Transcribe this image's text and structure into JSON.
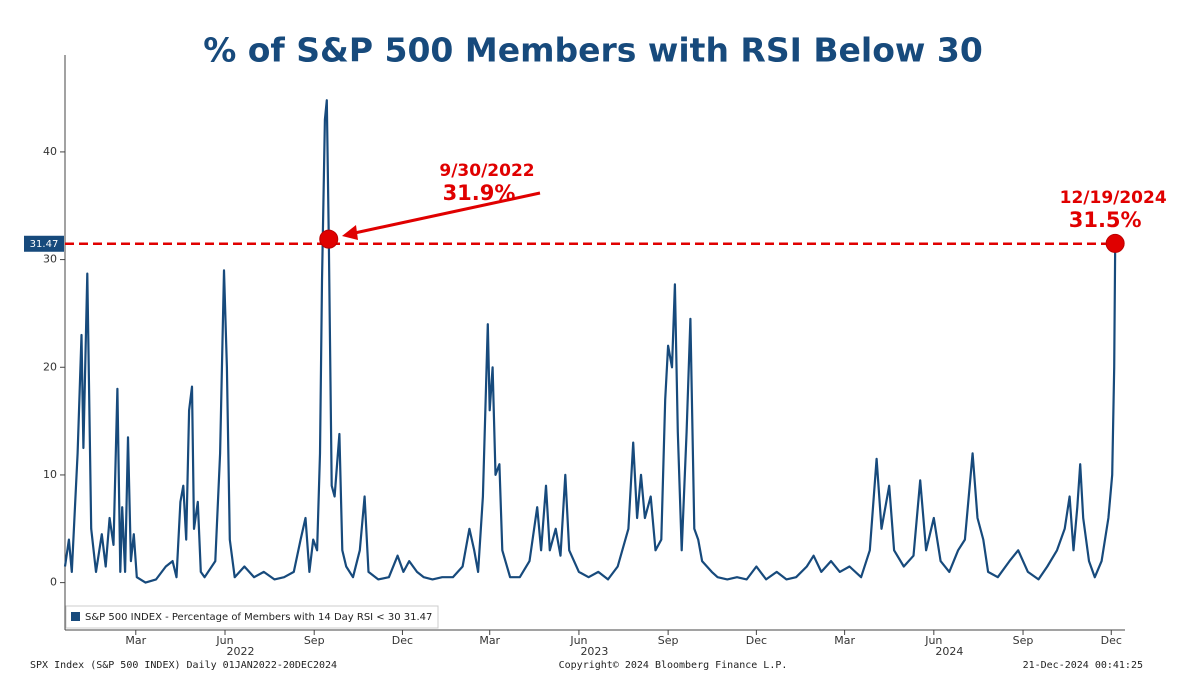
{
  "chart_data": {
    "type": "line",
    "title": "% of S&P 500 Members with RSI Below 30",
    "series": [
      {
        "name": "S&P 500 INDEX - Percentage of Members with 14 Day RSI < 30 31.47",
        "color": "#174a7c",
        "x": [
          "2022-01-01",
          "2022-01-05",
          "2022-01-08",
          "2022-01-14",
          "2022-01-18",
          "2022-01-20",
          "2022-01-24",
          "2022-01-28",
          "2022-02-02",
          "2022-02-08",
          "2022-02-12",
          "2022-02-16",
          "2022-02-20",
          "2022-02-24",
          "2022-02-27",
          "2022-03-01",
          "2022-03-04",
          "2022-03-07",
          "2022-03-10",
          "2022-03-13",
          "2022-03-16",
          "2022-03-25",
          "2022-04-05",
          "2022-04-15",
          "2022-04-22",
          "2022-04-26",
          "2022-04-30",
          "2022-05-03",
          "2022-05-06",
          "2022-05-09",
          "2022-05-12",
          "2022-05-14",
          "2022-05-18",
          "2022-05-21",
          "2022-05-25",
          "2022-06-05",
          "2022-06-10",
          "2022-06-14",
          "2022-06-17",
          "2022-06-20",
          "2022-06-25",
          "2022-07-05",
          "2022-07-15",
          "2022-07-25",
          "2022-08-05",
          "2022-08-15",
          "2022-08-25",
          "2022-09-01",
          "2022-09-06",
          "2022-09-10",
          "2022-09-14",
          "2022-09-18",
          "2022-09-21",
          "2022-09-23",
          "2022-09-26",
          "2022-09-28",
          "2022-09-30",
          "2022-10-03",
          "2022-10-06",
          "2022-10-11",
          "2022-10-14",
          "2022-10-18",
          "2022-10-25",
          "2022-11-01",
          "2022-11-06",
          "2022-11-10",
          "2022-11-20",
          "2022-12-01",
          "2022-12-10",
          "2022-12-16",
          "2022-12-22",
          "2022-12-30",
          "2023-01-06",
          "2023-01-15",
          "2023-01-25",
          "2023-02-05",
          "2023-02-15",
          "2023-02-22",
          "2023-02-27",
          "2023-03-03",
          "2023-03-08",
          "2023-03-13",
          "2023-03-15",
          "2023-03-18",
          "2023-03-21",
          "2023-03-25",
          "2023-03-28",
          "2023-04-05",
          "2023-04-15",
          "2023-04-25",
          "2023-05-03",
          "2023-05-07",
          "2023-05-12",
          "2023-05-16",
          "2023-05-22",
          "2023-05-27",
          "2023-06-01",
          "2023-06-05",
          "2023-06-15",
          "2023-06-25",
          "2023-07-05",
          "2023-07-15",
          "2023-07-25",
          "2023-08-05",
          "2023-08-10",
          "2023-08-14",
          "2023-08-18",
          "2023-08-22",
          "2023-08-28",
          "2023-09-02",
          "2023-09-08",
          "2023-09-12",
          "2023-09-15",
          "2023-09-19",
          "2023-09-22",
          "2023-09-25",
          "2023-09-29",
          "2023-10-04",
          "2023-10-08",
          "2023-10-12",
          "2023-10-16",
          "2023-10-20",
          "2023-10-30",
          "2023-11-05",
          "2023-11-15",
          "2023-11-25",
          "2023-12-05",
          "2023-12-15",
          "2023-12-25",
          "2024-01-05",
          "2024-01-15",
          "2024-01-25",
          "2024-02-05",
          "2024-02-12",
          "2024-02-20",
          "2024-03-01",
          "2024-03-10",
          "2024-03-20",
          "2024-04-01",
          "2024-04-10",
          "2024-04-17",
          "2024-04-22",
          "2024-04-30",
          "2024-05-05",
          "2024-05-15",
          "2024-05-25",
          "2024-06-01",
          "2024-06-07",
          "2024-06-15",
          "2024-06-22",
          "2024-07-01",
          "2024-07-10",
          "2024-07-17",
          "2024-07-25",
          "2024-07-30",
          "2024-08-05",
          "2024-08-10",
          "2024-08-20",
          "2024-09-01",
          "2024-09-10",
          "2024-09-20",
          "2024-10-01",
          "2024-10-10",
          "2024-10-20",
          "2024-10-28",
          "2024-11-02",
          "2024-11-06",
          "2024-11-10",
          "2024-11-13",
          "2024-11-16",
          "2024-11-22",
          "2024-11-28",
          "2024-12-05",
          "2024-12-12",
          "2024-12-16",
          "2024-12-18",
          "2024-12-19"
        ],
        "values": [
          1.5,
          4,
          1,
          12,
          23,
          12.5,
          28.7,
          5,
          1,
          4.5,
          1.5,
          6,
          3.5,
          18,
          1,
          7,
          1,
          13.5,
          2,
          4.5,
          0.5,
          0,
          0.3,
          1.5,
          2,
          0.5,
          7.5,
          9,
          4,
          16,
          18.2,
          5,
          7.5,
          1,
          0.5,
          2,
          12,
          29,
          20,
          4,
          0.5,
          1.5,
          0.5,
          1,
          0.3,
          0.5,
          1,
          4,
          6,
          1,
          4,
          3,
          12,
          28,
          43,
          44.8,
          31.9,
          9,
          8,
          13.8,
          3,
          1.5,
          0.5,
          3,
          8,
          1,
          0.3,
          0.5,
          2.5,
          1,
          2,
          1,
          0.5,
          0.3,
          0.5,
          0.5,
          1.5,
          5,
          3,
          1,
          8,
          24,
          16,
          20,
          10,
          11,
          3,
          0.5,
          0.5,
          2,
          7,
          3,
          9,
          3,
          5,
          2.5,
          10,
          3,
          1,
          0.5,
          1,
          0.3,
          1.5,
          5,
          13,
          6,
          10,
          6,
          8,
          3,
          4,
          17,
          22,
          20,
          27.7,
          14,
          3,
          14,
          24.5,
          5,
          4,
          2,
          1,
          0.5,
          0.3,
          0.5,
          0.3,
          1.5,
          0.3,
          1,
          0.3,
          0.5,
          1.5,
          2.5,
          1,
          2,
          1,
          1.5,
          0.5,
          3,
          11.5,
          5,
          9,
          3,
          1.5,
          2.5,
          9.5,
          3,
          6,
          2,
          1,
          3,
          4,
          12,
          6,
          4,
          1,
          0.5,
          2,
          3,
          1,
          0.3,
          1.5,
          3,
          5,
          8,
          3,
          7,
          11,
          6,
          2,
          0.5,
          2,
          6,
          10,
          20,
          31.5
        ]
      }
    ],
    "xlim": [
      "2022-01-01",
      "2024-12-24"
    ],
    "xticks": [
      {
        "value": "2022-03-15",
        "label": "Mar"
      },
      {
        "value": "2022-06-15",
        "label": "Jun"
      },
      {
        "value": "2022-09-15",
        "label": "Sep"
      },
      {
        "value": "2022-12-15",
        "label": "Dec"
      },
      {
        "value": "2023-03-15",
        "label": "Mar"
      },
      {
        "value": "2023-06-15",
        "label": "Jun"
      },
      {
        "value": "2023-09-15",
        "label": "Sep"
      },
      {
        "value": "2023-12-15",
        "label": "Dec"
      },
      {
        "value": "2024-03-15",
        "label": "Mar"
      },
      {
        "value": "2024-06-15",
        "label": "Jun"
      },
      {
        "value": "2024-09-15",
        "label": "Sep"
      },
      {
        "value": "2024-12-15",
        "label": "Dec"
      }
    ],
    "year_ticks": [
      {
        "value": "2022-07-01",
        "label": "2022"
      },
      {
        "value": "2023-07-01",
        "label": "2023"
      },
      {
        "value": "2024-07-01",
        "label": "2024"
      }
    ],
    "ylim": [
      -4.4,
      49
    ],
    "yticks": [
      0,
      10,
      20,
      30,
      40
    ],
    "reference_line": {
      "value": 31.47,
      "label": "31.47",
      "color": "#e00000"
    },
    "annotations": [
      {
        "x": "2022-09-30",
        "value": 31.9,
        "date_label": "9/30/2022",
        "label": "31.9%"
      },
      {
        "x": "2024-12-19",
        "value": 31.5,
        "date_label": "12/19/2024",
        "label": "31.5%"
      }
    ],
    "footer": {
      "left": "SPX Index (S&P 500 INDEX)  Daily 01JAN2022-20DEC2024",
      "center": "Copyright© 2024 Bloomberg Finance L.P.",
      "right": "21-Dec-2024 00:41:25"
    }
  }
}
